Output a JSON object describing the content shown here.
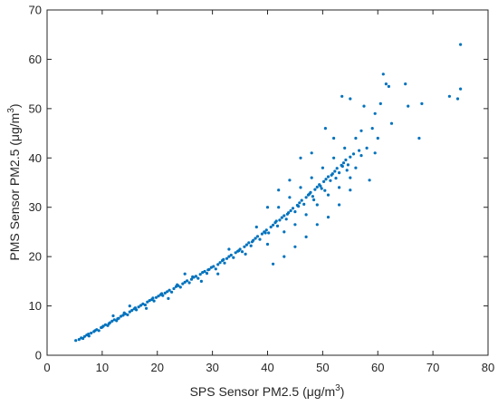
{
  "chart_data": {
    "type": "scatter",
    "xlabel": {
      "prefix": "SPS Sensor PM2.5 (μg/m",
      "sup": "3",
      "suffix": ")"
    },
    "ylabel": {
      "prefix": "PMS Sensor PM2.5 (μg/m",
      "sup": "3",
      "suffix": ")"
    },
    "xlim": [
      0,
      80
    ],
    "ylim": [
      0,
      70
    ],
    "xticks": [
      0,
      10,
      20,
      30,
      40,
      50,
      60,
      70,
      80
    ],
    "yticks": [
      0,
      10,
      20,
      30,
      40,
      50,
      60,
      70
    ],
    "grid": false,
    "marker_color": "#0072BD",
    "series": [
      {
        "points": [
          [
            5.2,
            3.0
          ],
          [
            5.8,
            3.2
          ],
          [
            6.2,
            3.5
          ],
          [
            6.8,
            3.8
          ],
          [
            7.2,
            4.1
          ],
          [
            7.6,
            3.9
          ],
          [
            8.0,
            4.5
          ],
          [
            8.5,
            4.8
          ],
          [
            9.0,
            5.2
          ],
          [
            9.4,
            5.0
          ],
          [
            9.8,
            5.6
          ],
          [
            10.2,
            5.9
          ],
          [
            10.6,
            6.2
          ],
          [
            11.0,
            6.0
          ],
          [
            11.4,
            6.6
          ],
          [
            11.8,
            6.9
          ],
          [
            12.2,
            7.2
          ],
          [
            12.6,
            7.0
          ],
          [
            13.0,
            7.5
          ],
          [
            13.4,
            7.9
          ],
          [
            13.8,
            8.1
          ],
          [
            14.2,
            8.4
          ],
          [
            14.6,
            8.2
          ],
          [
            15.0,
            8.8
          ],
          [
            15.4,
            9.1
          ],
          [
            15.8,
            9.4
          ],
          [
            16.2,
            9.2
          ],
          [
            16.6,
            9.8
          ],
          [
            17.0,
            10.1
          ],
          [
            17.4,
            10.4
          ],
          [
            17.8,
            10.2
          ],
          [
            18.2,
            10.8
          ],
          [
            18.6,
            11.1
          ],
          [
            19.0,
            11.3
          ],
          [
            19.4,
            11.0
          ],
          [
            19.8,
            11.7
          ],
          [
            20.2,
            12.0
          ],
          [
            20.6,
            12.3
          ],
          [
            21.0,
            12.1
          ],
          [
            21.4,
            12.6
          ],
          [
            21.8,
            12.9
          ],
          [
            22.2,
            13.2
          ],
          [
            22.6,
            12.8
          ],
          [
            23.0,
            13.5
          ],
          [
            23.4,
            13.9
          ],
          [
            23.8,
            14.1
          ],
          [
            24.2,
            13.8
          ],
          [
            24.6,
            14.5
          ],
          [
            25.0,
            14.8
          ],
          [
            25.4,
            15.1
          ],
          [
            25.8,
            14.7
          ],
          [
            26.2,
            15.4
          ],
          [
            26.6,
            15.8
          ],
          [
            27.0,
            16.0
          ],
          [
            27.4,
            15.6
          ],
          [
            27.8,
            16.4
          ],
          [
            28.2,
            16.8
          ],
          [
            28.6,
            17.0
          ],
          [
            29.0,
            16.6
          ],
          [
            29.4,
            17.4
          ],
          [
            29.8,
            17.8
          ],
          [
            30.2,
            18.0
          ],
          [
            30.6,
            17.5
          ],
          [
            31.0,
            18.4
          ],
          [
            31.4,
            18.8
          ],
          [
            31.8,
            19.2
          ],
          [
            32.2,
            18.7
          ],
          [
            32.6,
            19.6
          ],
          [
            33.0,
            20.0
          ],
          [
            33.4,
            20.3
          ],
          [
            33.8,
            19.8
          ],
          [
            34.2,
            20.8
          ],
          [
            34.6,
            21.1
          ],
          [
            35.0,
            21.5
          ],
          [
            35.4,
            21.0
          ],
          [
            35.8,
            22.0
          ],
          [
            36.2,
            22.4
          ],
          [
            36.6,
            22.8
          ],
          [
            37.0,
            22.2
          ],
          [
            37.4,
            23.3
          ],
          [
            37.8,
            23.7
          ],
          [
            38.2,
            24.1
          ],
          [
            38.6,
            23.5
          ],
          [
            39.0,
            24.6
          ],
          [
            39.4,
            25.0
          ],
          [
            39.8,
            25.4
          ],
          [
            40.2,
            24.8
          ],
          [
            40.6,
            26.0
          ],
          [
            41.0,
            26.4
          ],
          [
            41.4,
            26.9
          ],
          [
            41.8,
            26.2
          ],
          [
            42.2,
            27.4
          ],
          [
            42.6,
            27.9
          ],
          [
            43.0,
            28.3
          ],
          [
            43.4,
            27.6
          ],
          [
            43.8,
            28.9
          ],
          [
            44.2,
            29.3
          ],
          [
            44.6,
            29.8
          ],
          [
            45.0,
            29.1
          ],
          [
            45.4,
            30.4
          ],
          [
            45.8,
            30.9
          ],
          [
            46.2,
            31.4
          ],
          [
            46.6,
            30.6
          ],
          [
            47.0,
            32.0
          ],
          [
            47.4,
            32.5
          ],
          [
            47.8,
            33.0
          ],
          [
            48.2,
            32.2
          ],
          [
            48.6,
            33.6
          ],
          [
            49.0,
            34.1
          ],
          [
            49.4,
            34.6
          ],
          [
            49.8,
            33.8
          ],
          [
            50.2,
            35.2
          ],
          [
            50.6,
            35.7
          ],
          [
            51.0,
            36.2
          ],
          [
            51.4,
            35.4
          ],
          [
            51.8,
            36.8
          ],
          [
            52.2,
            37.3
          ],
          [
            52.6,
            37.9
          ],
          [
            53.0,
            37.0
          ],
          [
            53.4,
            38.5
          ],
          [
            53.8,
            39.0
          ],
          [
            54.2,
            39.6
          ],
          [
            54.6,
            38.6
          ],
          [
            55.0,
            40.2
          ],
          [
            12.0,
            8.0
          ],
          [
            15.0,
            10.0
          ],
          [
            18.0,
            9.5
          ],
          [
            22.0,
            11.5
          ],
          [
            25.0,
            16.5
          ],
          [
            28.0,
            15.0
          ],
          [
            31.0,
            16.5
          ],
          [
            33.0,
            21.5
          ],
          [
            36.0,
            20.5
          ],
          [
            38.0,
            26.0
          ],
          [
            40.0,
            22.5
          ],
          [
            42.0,
            30.0
          ],
          [
            43.0,
            25.0
          ],
          [
            44.0,
            32.0
          ],
          [
            45.0,
            26.5
          ],
          [
            46.0,
            34.0
          ],
          [
            47.0,
            28.5
          ],
          [
            48.0,
            36.0
          ],
          [
            49.0,
            30.5
          ],
          [
            50.0,
            38.0
          ],
          [
            51.0,
            32.5
          ],
          [
            52.0,
            40.0
          ],
          [
            53.0,
            34.0
          ],
          [
            54.0,
            42.0
          ],
          [
            55.0,
            36.0
          ],
          [
            56.0,
            44.0
          ],
          [
            56.0,
            38.0
          ],
          [
            57.0,
            45.5
          ],
          [
            57.0,
            40.5
          ],
          [
            58.0,
            42.0
          ],
          [
            58.5,
            35.5
          ],
          [
            59.0,
            46.0
          ],
          [
            59.5,
            41.0
          ],
          [
            60.0,
            44.0
          ],
          [
            60.5,
            51.0
          ],
          [
            61.0,
            57.0
          ],
          [
            61.5,
            55.0
          ],
          [
            62.0,
            54.5
          ],
          [
            62.5,
            47.0
          ],
          [
            53.5,
            52.5
          ],
          [
            55.0,
            52.0
          ],
          [
            50.5,
            46.0
          ],
          [
            52.0,
            44.0
          ],
          [
            48.0,
            41.0
          ],
          [
            46.0,
            40.0
          ],
          [
            44.0,
            35.5
          ],
          [
            42.0,
            33.5
          ],
          [
            40.0,
            30.0
          ],
          [
            57.5,
            50.5
          ],
          [
            59.5,
            49.0
          ],
          [
            65.0,
            55.0
          ],
          [
            65.5,
            50.5
          ],
          [
            67.5,
            44.0
          ],
          [
            68.0,
            51.0
          ],
          [
            73.0,
            52.5
          ],
          [
            74.5,
            52.0
          ],
          [
            75.0,
            54.0
          ],
          [
            75.0,
            63.0
          ],
          [
            41.0,
            18.5
          ],
          [
            43.0,
            20.0
          ],
          [
            45.0,
            22.0
          ],
          [
            47.0,
            24.0
          ],
          [
            49.0,
            26.5
          ],
          [
            51.0,
            28.0
          ],
          [
            53.0,
            30.5
          ],
          [
            55.0,
            33.5
          ],
          [
            6.5,
            3.4
          ],
          [
            7.5,
            4.3
          ],
          [
            8.7,
            5.0
          ],
          [
            10.0,
            5.7
          ],
          [
            11.2,
            6.4
          ],
          [
            12.8,
            7.4
          ],
          [
            14.0,
            8.6
          ],
          [
            16.0,
            9.6
          ],
          [
            19.2,
            11.6
          ],
          [
            20.8,
            12.5
          ],
          [
            23.6,
            14.3
          ],
          [
            26.4,
            15.9
          ],
          [
            29.2,
            17.3
          ],
          [
            32.0,
            19.4
          ],
          [
            34.8,
            21.2
          ],
          [
            37.2,
            23.0
          ],
          [
            39.6,
            24.8
          ],
          [
            41.6,
            27.2
          ],
          [
            43.6,
            28.6
          ],
          [
            45.6,
            30.2
          ],
          [
            47.6,
            32.7
          ],
          [
            49.6,
            34.3
          ],
          [
            51.6,
            36.5
          ],
          [
            53.6,
            38.3
          ],
          [
            55.6,
            40.8
          ],
          [
            56.6,
            41.5
          ],
          [
            54.4,
            37.5
          ],
          [
            52.4,
            35.9
          ],
          [
            50.4,
            33.4
          ],
          [
            48.4,
            31.5
          ]
        ]
      }
    ]
  }
}
